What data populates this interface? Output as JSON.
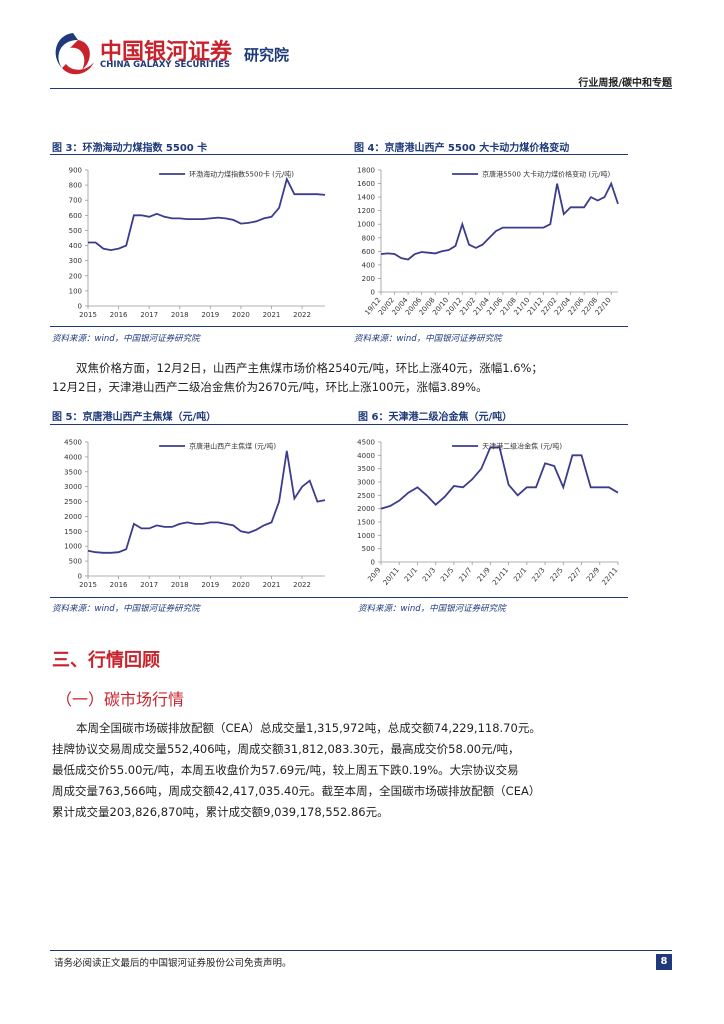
{
  "header": {
    "company_cn": "中国银河证券",
    "company_en": "CHINA GALAXY SECURITIES",
    "institute": "研究院",
    "report_type": "行业周报/碳中和专题"
  },
  "figures": [
    {
      "title": "图 3：环渤海动力煤指数 5500 卡",
      "source": "资料来源：wind，中国银河证券研究院"
    },
    {
      "title": "图 4：京唐港山西产 5500 大卡动力煤价格变动",
      "source": "资料来源：wind，中国银河证券研究院"
    },
    {
      "title": "图 5：京唐港山西产主焦煤（元/吨）",
      "source": "资料来源：wind，中国银河证券研究院"
    },
    {
      "title": "图 6：天津港二级冶金焦（元/吨）",
      "source": "资料来源：wind，中国银河证券研究院"
    }
  ],
  "paragraph1": [
    "双焦价格方面，12月2日，山西产主焦煤市场价格2540元/吨，环比上涨40元，涨幅1.6%；",
    "12月2日，天津港山西产二级冶金焦价为2670元/吨，环比上涨100元，涨幅3.89%。"
  ],
  "section": {
    "title": "三、行情回顾",
    "subtitle": "（一）碳市场行情"
  },
  "paragraph2": [
    "本周全国碳市场碳排放配额（CEA）总成交量1,315,972吨，总成交额74,229,118.70元。",
    "挂牌协议交易周成交量552,406吨，周成交额31,812,083.30元，最高成交价58.00元/吨，",
    "最低成交价55.00元/吨，本周五收盘价为57.69元/吨，较上周五下跌0.19%。大宗协议交易",
    "周成交量763,566吨，周成交额42,417,035.40元。截至本周，全国碳市场碳排放配额（CEA）",
    "累计成交量203,826,870吨，累计成交额9,039,178,552.86元。"
  ],
  "footer": {
    "disclaimer": "请务必阅读正文最后的中国银河证券股份公司免责声明。",
    "page": "8"
  },
  "chart_data": [
    {
      "type": "line",
      "legend": "upper center",
      "xlabel_rotation": 0,
      "categories": [
        "2015",
        null,
        null,
        null,
        "2016",
        null,
        null,
        null,
        "2017",
        null,
        null,
        null,
        "2018",
        null,
        null,
        null,
        "2019",
        null,
        null,
        null,
        "2020",
        null,
        null,
        null,
        "2021",
        null,
        null,
        null,
        "2022",
        null,
        null,
        null
      ],
      "series": [
        {
          "name": "环渤海动力煤指数5500卡 (元/吨)",
          "color": "#3b3b8f",
          "values": [
            420,
            420,
            380,
            370,
            380,
            400,
            600,
            600,
            590,
            610,
            590,
            580,
            580,
            575,
            575,
            575,
            580,
            585,
            580,
            570,
            545,
            550,
            560,
            580,
            590,
            650,
            840,
            740,
            740,
            740,
            740,
            735
          ]
        }
      ],
      "ylim": [
        0,
        900
      ],
      "yticks": [
        0,
        100,
        200,
        300,
        400,
        500,
        600,
        700,
        800,
        900
      ]
    },
    {
      "type": "line",
      "legend": "upper center",
      "xlabel_rotation": -50,
      "categories": [
        "19/12",
        null,
        "20/02",
        null,
        "20/04",
        null,
        "20/06",
        null,
        "20/08",
        null,
        "20/10",
        null,
        "20/12",
        null,
        "21/02",
        null,
        "21/04",
        null,
        "21/06",
        null,
        "21/08",
        null,
        "21/10",
        null,
        "21/12",
        null,
        "22/02",
        null,
        "22/04",
        null,
        "22/06",
        null,
        "22/08",
        null,
        "22/10",
        null
      ],
      "series": [
        {
          "name": "京唐港5500 大卡动力煤价格变动 (元/吨)",
          "color": "#3b3b8f",
          "values": [
            560,
            570,
            560,
            500,
            480,
            560,
            590,
            580,
            570,
            600,
            620,
            680,
            1000,
            700,
            650,
            700,
            800,
            900,
            950,
            950,
            950,
            950,
            950,
            950,
            950,
            1000,
            1600,
            1150,
            1250,
            1250,
            1250,
            1400,
            1350,
            1400,
            1600,
            1300
          ]
        }
      ],
      "ylim": [
        0,
        1800
      ],
      "yticks": [
        0,
        200,
        400,
        600,
        800,
        1000,
        1200,
        1400,
        1600,
        1800
      ]
    },
    {
      "type": "line",
      "legend": "upper center",
      "xlabel_rotation": 0,
      "categories": [
        "2015",
        null,
        null,
        null,
        "2016",
        null,
        null,
        null,
        "2017",
        null,
        null,
        null,
        "2018",
        null,
        null,
        null,
        "2019",
        null,
        null,
        null,
        "2020",
        null,
        null,
        null,
        "2021",
        null,
        null,
        null,
        "2022",
        null,
        null,
        null
      ],
      "series": [
        {
          "name": "京唐港山西产主焦煤 (元/吨)",
          "color": "#3b3b8f",
          "values": [
            850,
            800,
            780,
            780,
            800,
            900,
            1750,
            1600,
            1600,
            1700,
            1650,
            1650,
            1750,
            1800,
            1750,
            1750,
            1800,
            1800,
            1750,
            1700,
            1500,
            1450,
            1550,
            1700,
            1800,
            2500,
            4200,
            2600,
            3000,
            3200,
            2500,
            2550
          ]
        }
      ],
      "ylim": [
        0,
        4500
      ],
      "yticks": [
        0,
        500,
        1000,
        1500,
        2000,
        2500,
        3000,
        3500,
        4000,
        4500
      ]
    },
    {
      "type": "line",
      "legend": "upper center",
      "xlabel_rotation": -50,
      "categories": [
        "20/9",
        null,
        "20/11",
        null,
        "21/1",
        null,
        "21/3",
        null,
        "21/5",
        null,
        "21/7",
        null,
        "21/9",
        null,
        "21/11",
        null,
        "22/1",
        null,
        "22/3",
        null,
        "22/5",
        null,
        "22/7",
        null,
        "22/9",
        null,
        "22/11"
      ],
      "series": [
        {
          "name": "天津港二级冶金焦 (元/吨)",
          "color": "#3b3b8f",
          "values": [
            2000,
            2100,
            2300,
            2600,
            2800,
            2500,
            2150,
            2450,
            2850,
            2800,
            3100,
            3500,
            4300,
            4300,
            2900,
            2500,
            2800,
            2800,
            3700,
            3600,
            2800,
            4000,
            4000,
            2800,
            2800,
            2800,
            2600
          ]
        }
      ],
      "ylim": [
        0,
        4500
      ],
      "yticks": [
        0,
        500,
        1000,
        1500,
        2000,
        2500,
        3000,
        3500,
        4000,
        4500
      ]
    }
  ]
}
